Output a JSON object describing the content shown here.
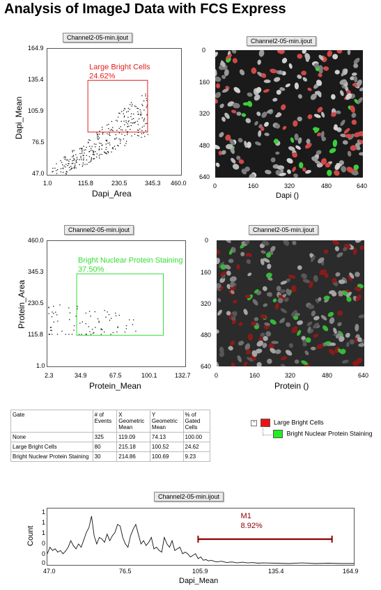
{
  "page": {
    "title": "Analysis of ImageJ Data with FCS Express"
  },
  "colors": {
    "red_gate": "#e02020",
    "green_gate": "#33dd33",
    "marker": "#8b0000"
  },
  "chart_data": [
    {
      "type": "scatter",
      "tab": "Channel2-05-min.ijout",
      "xlabel": "Dapi_Area",
      "ylabel": "Dapi_Mean",
      "xlim": [
        1.0,
        460.0
      ],
      "ylim": [
        47.0,
        164.9
      ],
      "xticks": [
        "1.0",
        "115.8",
        "230.5",
        "345.3",
        "460.0"
      ],
      "yticks": [
        "164.9",
        "135.4",
        "105.9",
        "76.5",
        "47.0"
      ],
      "gate": {
        "name": "Large Bright Cells",
        "value": "24.62%",
        "x_range": [
          140,
          345
        ],
        "y_range": [
          87,
          135.4
        ]
      },
      "seed": 7
    },
    {
      "type": "scatter",
      "tab": "Channel2-05-min.ijout",
      "xlabel": "Protein_Mean",
      "ylabel": "Protein_Area",
      "xlim": [
        2.3,
        132.7
      ],
      "ylim": [
        1.0,
        460.0
      ],
      "xticks": [
        "2.3",
        "34.9",
        "67.5",
        "100.1",
        "132.7"
      ],
      "yticks": [
        "460.0",
        "345.3",
        "230.5",
        "115.8",
        "1.0"
      ],
      "gate": {
        "name": "Bright Nuclear Protein Staining",
        "value": "37.50%",
        "x_range": [
          30,
          112
        ],
        "y_range": [
          115,
          340
        ]
      },
      "seed": 13
    },
    {
      "type": "line",
      "tab": "Channel2-05-min.ijout",
      "xlabel": "Dapi_Mean",
      "ylabel": "Count",
      "xlim": [
        47.0,
        164.9
      ],
      "xticks": [
        "47.0",
        "76.5",
        "105.9",
        "135.4",
        "164.9"
      ],
      "yticks": [
        "1",
        "1",
        "1",
        "0",
        "0",
        "0"
      ],
      "marker": {
        "name": "M1",
        "value": "8.92%",
        "x_range": [
          105.0,
          156.5
        ]
      },
      "x": [
        47.0,
        48.0,
        49.0,
        50.0,
        51.0,
        52.0,
        53.0,
        54.0,
        55.0,
        56.0,
        57.0,
        58.0,
        59.0,
        60.0,
        61.0,
        62.0,
        63.0,
        64.0,
        65.0,
        66.0,
        67.0,
        68.0,
        69.0,
        70.0,
        71.0,
        72.0,
        73.0,
        74.0,
        75.0,
        76.0,
        77.0,
        78.0,
        79.0,
        80.0,
        81.0,
        82.0,
        83.0,
        84.0,
        85.0,
        86.0,
        87.0,
        88.0,
        89.0,
        90.0,
        91.0,
        92.0,
        93.0,
        94.0,
        95.0,
        96.0,
        97.0,
        98.0,
        99.0,
        100.0,
        101.0,
        102.0,
        103.0,
        104.0,
        105.0,
        106.0,
        107.0,
        108.0,
        109.0,
        110.0,
        112.0,
        114.0,
        116.0,
        118.0,
        120.0,
        122.0,
        124.0,
        126.0,
        128.0,
        130.0,
        135.0,
        140.0,
        145.0,
        150.0,
        155.0,
        160.0,
        164.9
      ],
      "values": [
        0.3,
        0.5,
        0.4,
        0.45,
        0.35,
        0.4,
        0.3,
        0.38,
        0.5,
        0.7,
        0.55,
        0.45,
        0.6,
        0.5,
        0.72,
        0.95,
        1.1,
        1.45,
        0.85,
        0.6,
        0.8,
        0.75,
        0.65,
        0.9,
        0.7,
        0.85,
        0.95,
        1.2,
        1.15,
        0.8,
        0.6,
        0.5,
        0.85,
        1.05,
        1.2,
        0.9,
        0.6,
        0.7,
        0.55,
        0.65,
        0.8,
        0.45,
        0.5,
        0.4,
        0.35,
        0.8,
        0.6,
        0.5,
        0.7,
        0.4,
        0.45,
        0.5,
        0.3,
        0.35,
        0.3,
        0.2,
        0.25,
        0.3,
        0.15,
        0.2,
        0.1,
        0.12,
        0.08,
        0.1,
        0.05,
        0.07,
        0.03,
        0.05,
        0.02,
        0.04,
        0.02,
        0.03,
        0.01,
        0.02,
        0.01,
        0.0,
        0.02,
        0.0,
        0.01,
        0.0,
        0.0
      ],
      "ylim": [
        0,
        1.6
      ]
    }
  ],
  "images": [
    {
      "tab": "Channel2-05-min.ijout",
      "xlabel": "Dapi ()",
      "xticks": [
        "0",
        "160",
        "320",
        "480",
        "640"
      ],
      "yticks": [
        "0",
        "160",
        "320",
        "480",
        "640"
      ],
      "seed": 3
    },
    {
      "tab": "Channel2-05-min.ijout",
      "xlabel": "Protein ()",
      "xticks": [
        "0",
        "160",
        "320",
        "480",
        "640"
      ],
      "yticks": [
        "0",
        "160",
        "320",
        "480",
        "640"
      ],
      "seed": 11
    }
  ],
  "stats_table": {
    "headers": [
      "Gate",
      "# of Events",
      "X Geometric Mean",
      "Y Geometric Mean",
      "% of Gated Cells"
    ],
    "rows": [
      [
        "None",
        "325",
        "119.09",
        "74.13",
        "100.00"
      ],
      [
        "Large Bright Cells",
        "80",
        "215.18",
        "100.52",
        "24.62"
      ],
      [
        "Bright Nuclear Protein Staining",
        "30",
        "214.86",
        "100.69",
        "9.23"
      ]
    ]
  },
  "gate_tree": {
    "expander": "−",
    "items": [
      {
        "label": "Large Bright Cells",
        "color": "#ee1111"
      },
      {
        "label": "Bright Nuclear Protein Staining",
        "color": "#22ee22"
      }
    ]
  }
}
